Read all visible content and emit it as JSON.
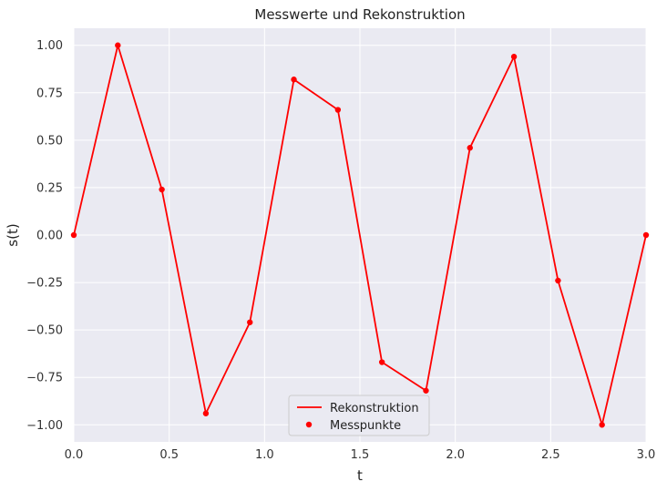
{
  "chart_data": {
    "type": "line",
    "title": "Messwerte und Rekonstruktion",
    "xlabel": "t",
    "ylabel": "s(t)",
    "xlim": [
      0,
      3
    ],
    "ylim": [
      -1.09,
      1.09
    ],
    "grid": true,
    "legend_position": "bottom-center",
    "x_ticks": [
      0.0,
      0.5,
      1.0,
      1.5,
      2.0,
      2.5,
      3.0
    ],
    "x_tick_labels": [
      "0.0",
      "0.5",
      "1.0",
      "1.5",
      "2.0",
      "2.5",
      "3.0"
    ],
    "y_ticks": [
      1.0,
      0.75,
      0.5,
      0.25,
      0.0,
      -0.25,
      -0.5,
      -0.75,
      -1.0
    ],
    "y_tick_labels": [
      "1.00",
      "0.75",
      "0.50",
      "0.25",
      "0.00",
      "−0.25",
      "−0.50",
      "−0.75",
      "−1.00"
    ],
    "series": [
      {
        "name": "Rekonstruktion",
        "kind": "line",
        "color": "#ff0000",
        "x": [
          0.0,
          0.2308,
          0.4615,
          0.6923,
          0.9231,
          1.1538,
          1.3846,
          1.6154,
          1.8462,
          2.0769,
          2.3077,
          2.5385,
          2.7692,
          3.0
        ],
        "y": [
          0.0,
          1.0,
          0.24,
          -0.94,
          -0.46,
          0.82,
          0.66,
          -0.67,
          -0.82,
          0.46,
          0.94,
          -0.24,
          -1.0,
          0.0
        ]
      },
      {
        "name": "Messpunkte",
        "kind": "scatter",
        "color": "#ff0000",
        "x": [
          0.0,
          0.2308,
          0.4615,
          0.6923,
          0.9231,
          1.1538,
          1.3846,
          1.6154,
          1.8462,
          2.0769,
          2.3077,
          2.5385,
          2.7692,
          3.0
        ],
        "y": [
          0.0,
          1.0,
          0.24,
          -0.94,
          -0.46,
          0.82,
          0.66,
          -0.67,
          -0.82,
          0.46,
          0.94,
          -0.24,
          -1.0,
          0.0
        ]
      }
    ]
  },
  "colors": {
    "plot_background": "#eaeaf2",
    "grid": "#ffffff"
  }
}
